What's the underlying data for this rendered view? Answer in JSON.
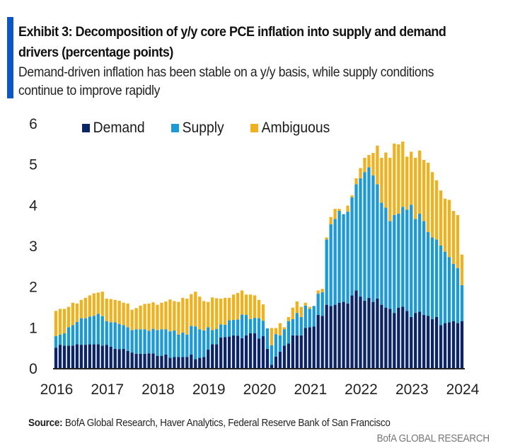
{
  "header": {
    "title": "Exhibit 3: Decomposition of y/y core PCE inflation into supply and demand drivers (percentage points)",
    "subtitle": "Demand-driven inflation has been stable on a y/y basis, while supply conditions continue to improve rapidly"
  },
  "footer": {
    "source_label": "Source:",
    "source_text": " BofA Global Research, Haver Analytics, Federal Reserve Bank of San Francisco",
    "brand": "BofA GLOBAL RESEARCH"
  },
  "colors": {
    "accent": "#0b57c8",
    "demand": "#0b2468",
    "supply": "#1b9ad6",
    "ambiguous": "#efb21e"
  },
  "chart_data": {
    "type": "bar",
    "stacked": true,
    "title": "Exhibit 3: Decomposition of y/y core PCE inflation into supply and demand drivers (percentage points)",
    "xlabel": "",
    "ylabel": "",
    "ylim": [
      0,
      6
    ],
    "yticks": [
      0,
      1,
      2,
      3,
      4,
      5,
      6
    ],
    "xtick_labels": [
      "2016",
      "2017",
      "2018",
      "2019",
      "2020",
      "2021",
      "2022",
      "2023",
      "2024"
    ],
    "x_start": "2016-01",
    "frequency": "monthly",
    "legend": {
      "position": "top",
      "entries": [
        "Demand",
        "Supply",
        "Ambiguous"
      ]
    },
    "grid": false,
    "series": [
      {
        "name": "Demand",
        "color": "#0b2468",
        "values": [
          0.5,
          0.57,
          0.55,
          0.55,
          0.55,
          0.58,
          0.57,
          0.57,
          0.58,
          0.58,
          0.58,
          0.55,
          0.57,
          0.52,
          0.47,
          0.46,
          0.47,
          0.42,
          0.38,
          0.35,
          0.35,
          0.35,
          0.36,
          0.36,
          0.3,
          0.3,
          0.33,
          0.25,
          0.27,
          0.27,
          0.27,
          0.27,
          0.33,
          0.22,
          0.25,
          0.27,
          0.45,
          0.58,
          0.58,
          0.75,
          0.76,
          0.77,
          0.8,
          0.79,
          0.73,
          0.8,
          0.85,
          0.85,
          0.72,
          0.78,
          0.47,
          0.08,
          0.28,
          0.4,
          0.55,
          0.6,
          0.8,
          0.8,
          0.8,
          0.98,
          1.0,
          1.02,
          1.3,
          1.28,
          1.55,
          1.52,
          1.55,
          1.6,
          1.62,
          1.58,
          1.78,
          1.9,
          1.75,
          1.65,
          1.72,
          1.62,
          1.7,
          1.55,
          1.48,
          1.45,
          1.35,
          1.48,
          1.5,
          1.4,
          1.25,
          1.35,
          1.38,
          1.3,
          1.28,
          1.2,
          1.25,
          1.05,
          1.1,
          1.12,
          1.15,
          1.1,
          1.15
        ]
      },
      {
        "name": "Supply",
        "color": "#1b9ad6",
        "values": [
          0.28,
          0.25,
          0.3,
          0.45,
          0.5,
          0.55,
          0.65,
          0.65,
          0.68,
          0.7,
          0.75,
          0.72,
          0.58,
          0.6,
          0.65,
          0.62,
          0.58,
          0.58,
          0.55,
          0.6,
          0.6,
          0.6,
          0.55,
          0.6,
          0.63,
          0.65,
          0.62,
          0.65,
          0.65,
          0.55,
          0.6,
          0.55,
          0.7,
          0.8,
          0.7,
          0.65,
          0.55,
          0.35,
          0.38,
          0.32,
          0.3,
          0.4,
          0.38,
          0.4,
          0.58,
          0.5,
          0.35,
          0.38,
          0.5,
          0.38,
          0.5,
          0.48,
          0.55,
          0.4,
          0.4,
          0.55,
          0.4,
          0.55,
          0.45,
          0.55,
          0.45,
          0.5,
          0.52,
          0.58,
          1.6,
          2.0,
          2.1,
          2.25,
          2.15,
          2.25,
          2.4,
          2.6,
          2.9,
          3.15,
          3.2,
          3.1,
          2.8,
          2.5,
          2.45,
          2.15,
          2.4,
          2.3,
          2.45,
          2.48,
          2.75,
          2.3,
          2.4,
          2.3,
          2.05,
          2.0,
          1.9,
          1.95,
          1.75,
          1.6,
          1.4,
          1.35,
          0.88
        ]
      },
      {
        "name": "Ambiguous",
        "color": "#efb21e",
        "values": [
          0.62,
          0.63,
          0.6,
          0.5,
          0.55,
          0.45,
          0.45,
          0.5,
          0.52,
          0.55,
          0.52,
          0.6,
          0.55,
          0.57,
          0.55,
          0.57,
          0.55,
          0.58,
          0.5,
          0.52,
          0.58,
          0.62,
          0.67,
          0.65,
          0.62,
          0.65,
          0.68,
          0.78,
          0.72,
          0.8,
          0.85,
          0.88,
          0.78,
          0.85,
          0.8,
          0.72,
          0.62,
          0.8,
          0.75,
          0.63,
          0.66,
          0.55,
          0.62,
          0.65,
          0.59,
          0.5,
          0.6,
          0.55,
          0.45,
          0.4,
          0.0,
          0.42,
          0.15,
          0.3,
          0.05,
          0.1,
          0.28,
          0.28,
          0.25,
          0.07,
          0.05,
          0.0,
          0.08,
          0.08,
          0.05,
          0.18,
          0.25,
          0.05,
          0.0,
          0.15,
          0.05,
          0.15,
          0.25,
          0.35,
          0.3,
          0.55,
          0.95,
          1.1,
          1.35,
          1.55,
          1.75,
          1.7,
          1.6,
          1.3,
          1.3,
          1.5,
          1.55,
          1.5,
          1.7,
          1.6,
          1.45,
          1.35,
          1.3,
          1.4,
          1.3,
          1.3,
          0.75
        ]
      }
    ]
  }
}
